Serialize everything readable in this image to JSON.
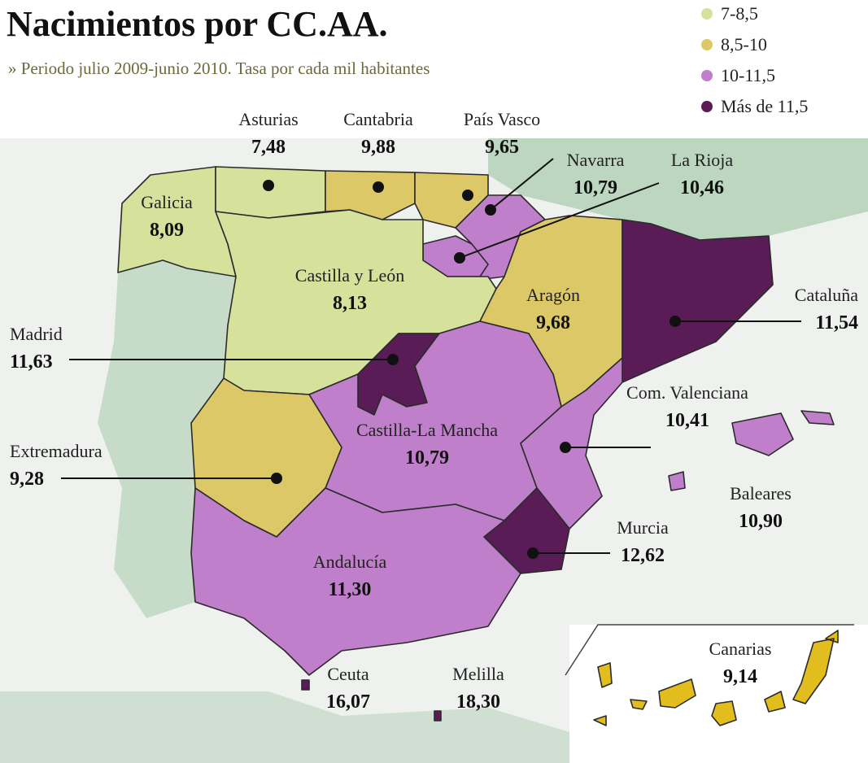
{
  "title": "Nacimientos por CC.AA.",
  "subtitle": "» Periodo julio 2009-junio 2010. Tasa por cada mil habitantes",
  "legend": [
    {
      "label": "7-8,5",
      "color": "#d6e19c"
    },
    {
      "label": "8,5-10",
      "color": "#dcc866"
    },
    {
      "label": "10-11,5",
      "color": "#c07fca"
    },
    {
      "label": "Más de 11,5",
      "color": "#5a1c57"
    }
  ],
  "regions": [
    {
      "name": "Galicia",
      "value": "8,09",
      "color": "#d6e19c"
    },
    {
      "name": "Asturias",
      "value": "7,48",
      "color": "#d6e19c"
    },
    {
      "name": "Cantabria",
      "value": "9,88",
      "color": "#dcc866"
    },
    {
      "name": "País Vasco",
      "value": "9,65",
      "color": "#dcc866"
    },
    {
      "name": "Navarra",
      "value": "10,79",
      "color": "#c07fca"
    },
    {
      "name": "La Rioja",
      "value": "10,46",
      "color": "#c07fca"
    },
    {
      "name": "Castilla y León",
      "value": "8,13",
      "color": "#d6e19c"
    },
    {
      "name": "Aragón",
      "value": "9,68",
      "color": "#dcc866"
    },
    {
      "name": "Cataluña",
      "value": "11,54",
      "color": "#5a1c57"
    },
    {
      "name": "Madrid",
      "value": "11,63",
      "color": "#5a1c57"
    },
    {
      "name": "Castilla-La Mancha",
      "value": "10,79",
      "color": "#c07fca"
    },
    {
      "name": "Extremadura",
      "value": "9,28",
      "color": "#dcc866"
    },
    {
      "name": "Com. Valenciana",
      "value": "10,41",
      "color": "#c07fca"
    },
    {
      "name": "Murcia",
      "value": "12,62",
      "color": "#5a1c57"
    },
    {
      "name": "Andalucía",
      "value": "11,30",
      "color": "#c07fca"
    },
    {
      "name": "Baleares",
      "value": "10,90",
      "color": "#c07fca"
    },
    {
      "name": "Canarias",
      "value": "9,14",
      "color": "#e2bd1e"
    },
    {
      "name": "Ceuta",
      "value": "16,07",
      "color": "#5a1c57"
    },
    {
      "name": "Melilla",
      "value": "18,30",
      "color": "#5a1c57"
    }
  ]
}
